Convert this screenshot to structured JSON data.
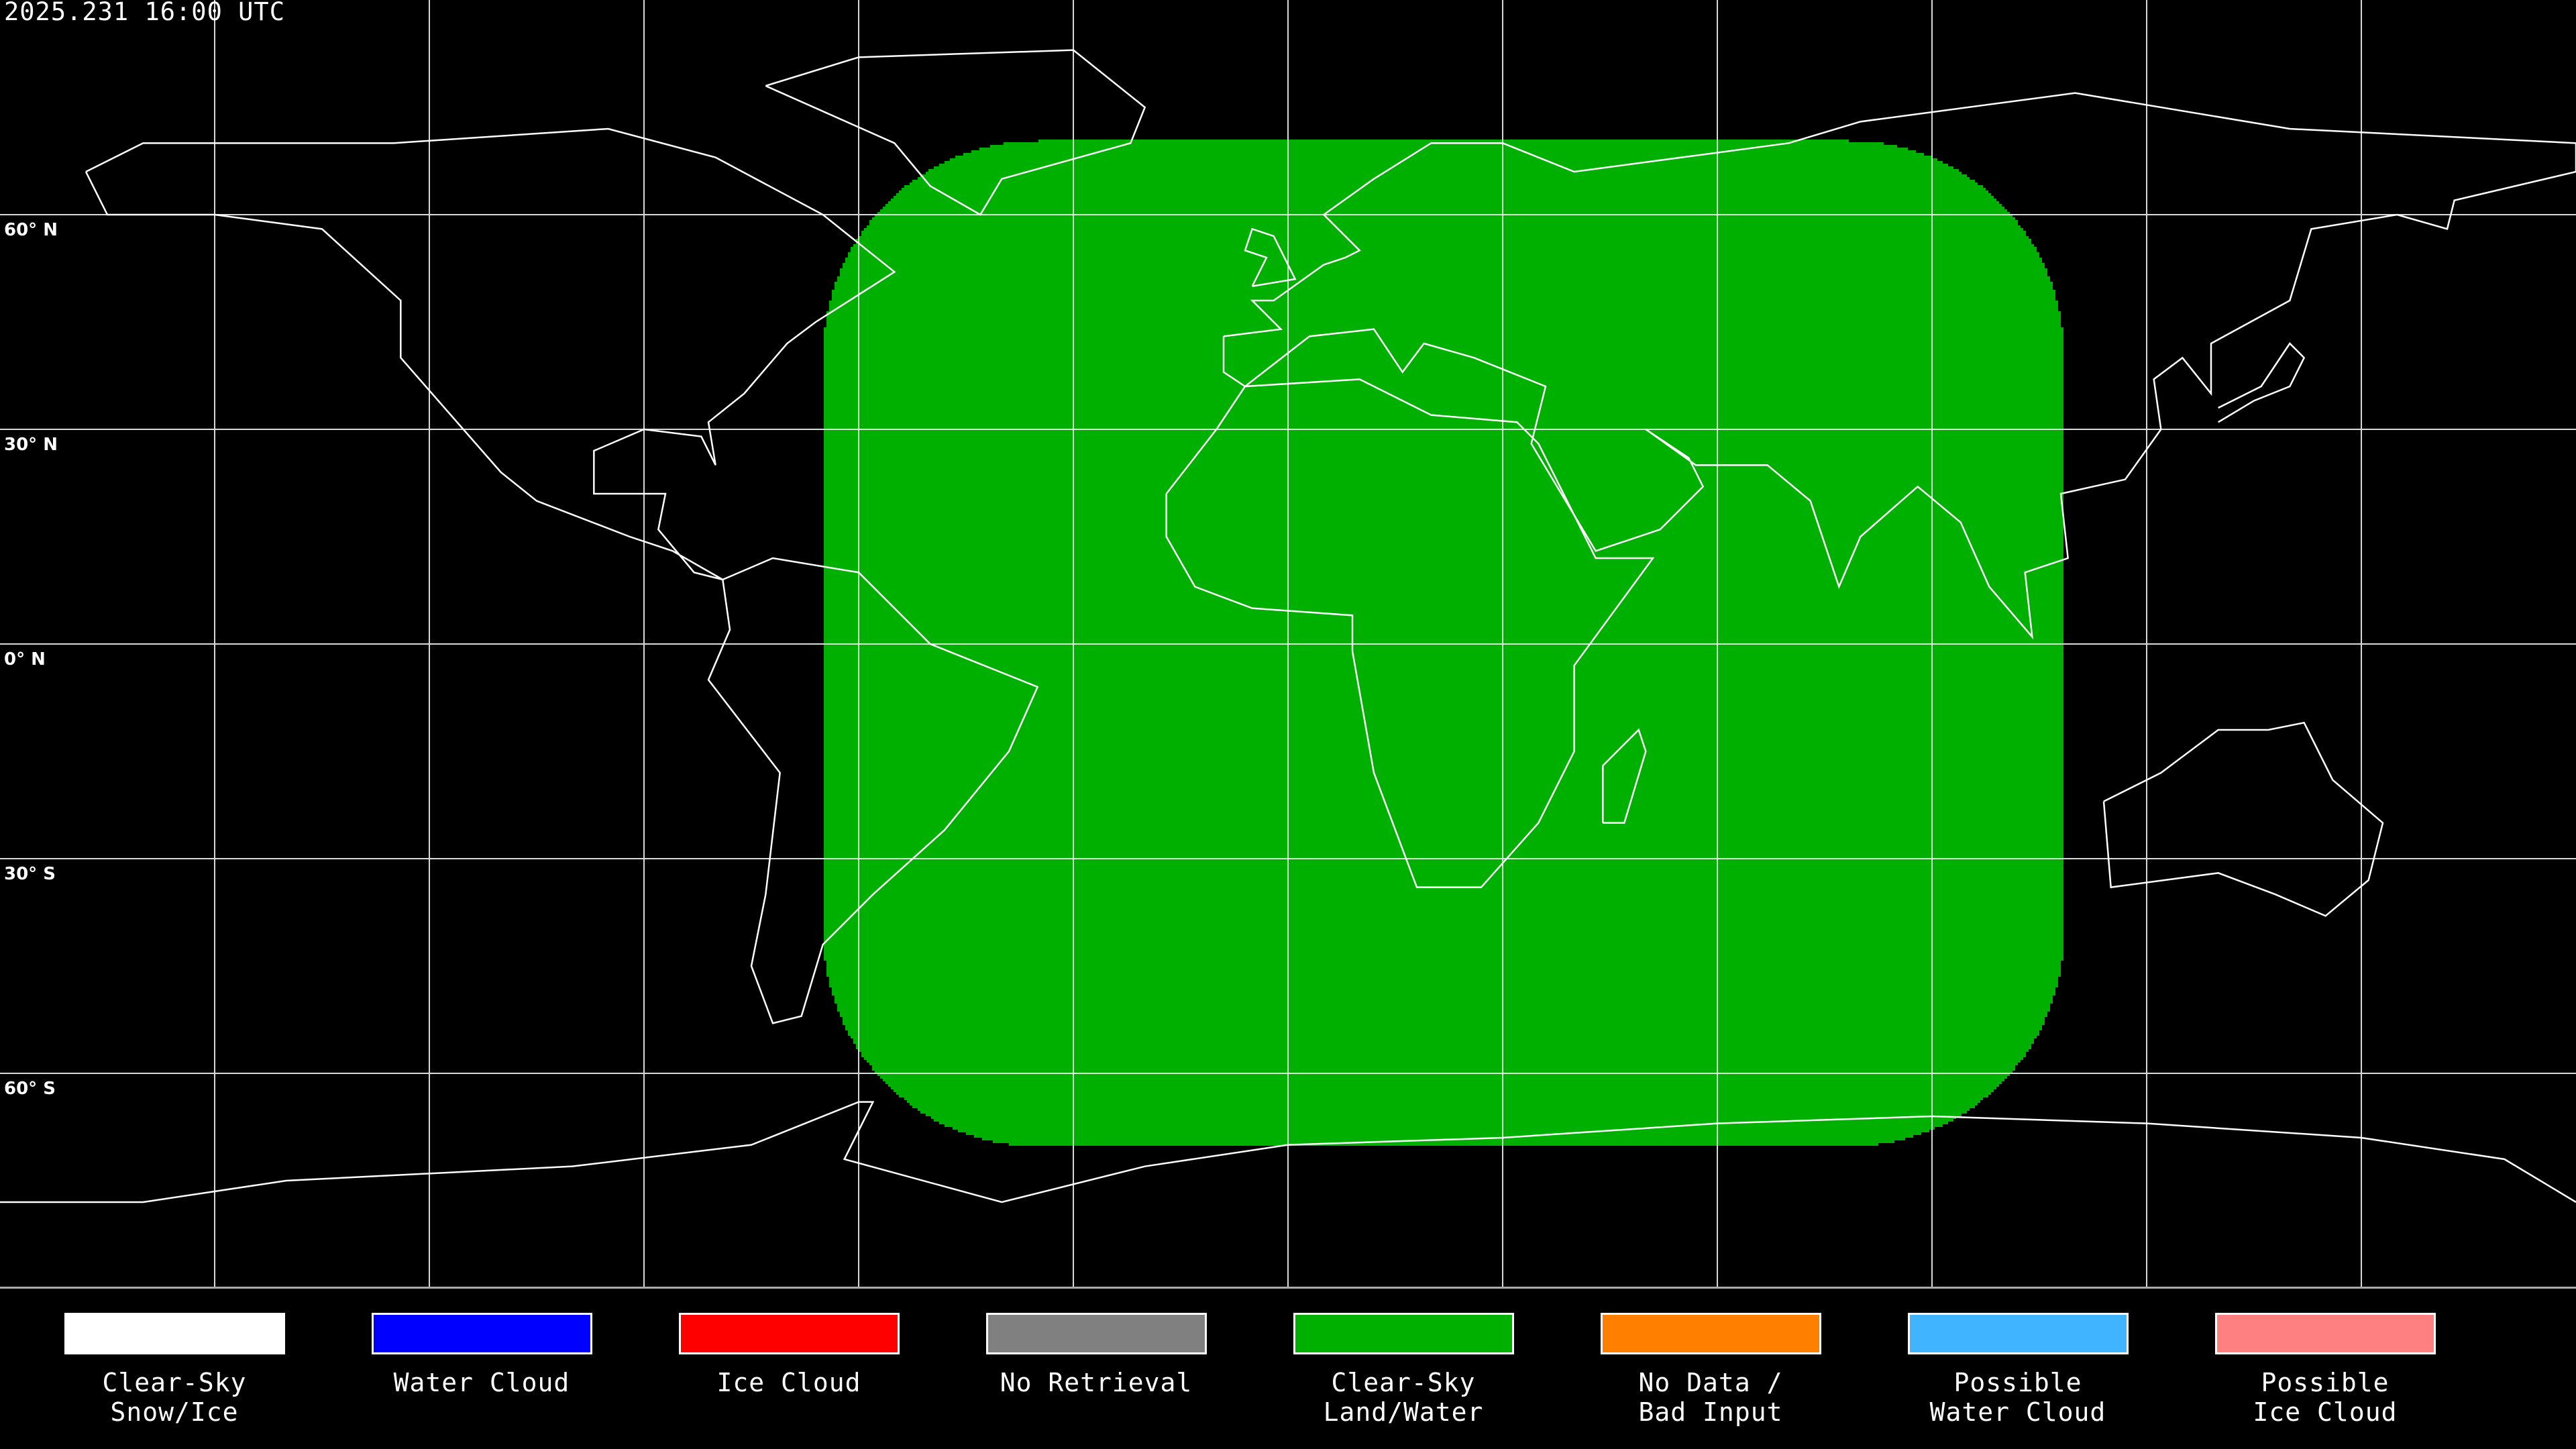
{
  "timestamp": "2025.231 16:00 UTC",
  "latitude_labels": [
    "60° N",
    "30° N",
    "0° N",
    "30° S",
    "60° S"
  ],
  "legend": [
    {
      "label": "Clear-Sky\nSnow/Ice",
      "color": "#ffffff"
    },
    {
      "label": "Water Cloud",
      "color": "#0000ff"
    },
    {
      "label": "Ice Cloud",
      "color": "#ff0000"
    },
    {
      "label": "No Retrieval",
      "color": "#808080"
    },
    {
      "label": "Clear-Sky\nLand/Water",
      "color": "#00b000"
    },
    {
      "label": "No Data /\nBad Input",
      "color": "#ff8000"
    },
    {
      "label": "Possible\nWater Cloud",
      "color": "#40b4ff"
    },
    {
      "label": "Possible\nIce Cloud",
      "color": "#ff8080"
    }
  ],
  "map": {
    "projection": "equirectangular",
    "grid_spacing_degrees": 30,
    "gridline_color": "#ffffff",
    "coastline_color": "#ffffff",
    "background_color": "#000000"
  }
}
